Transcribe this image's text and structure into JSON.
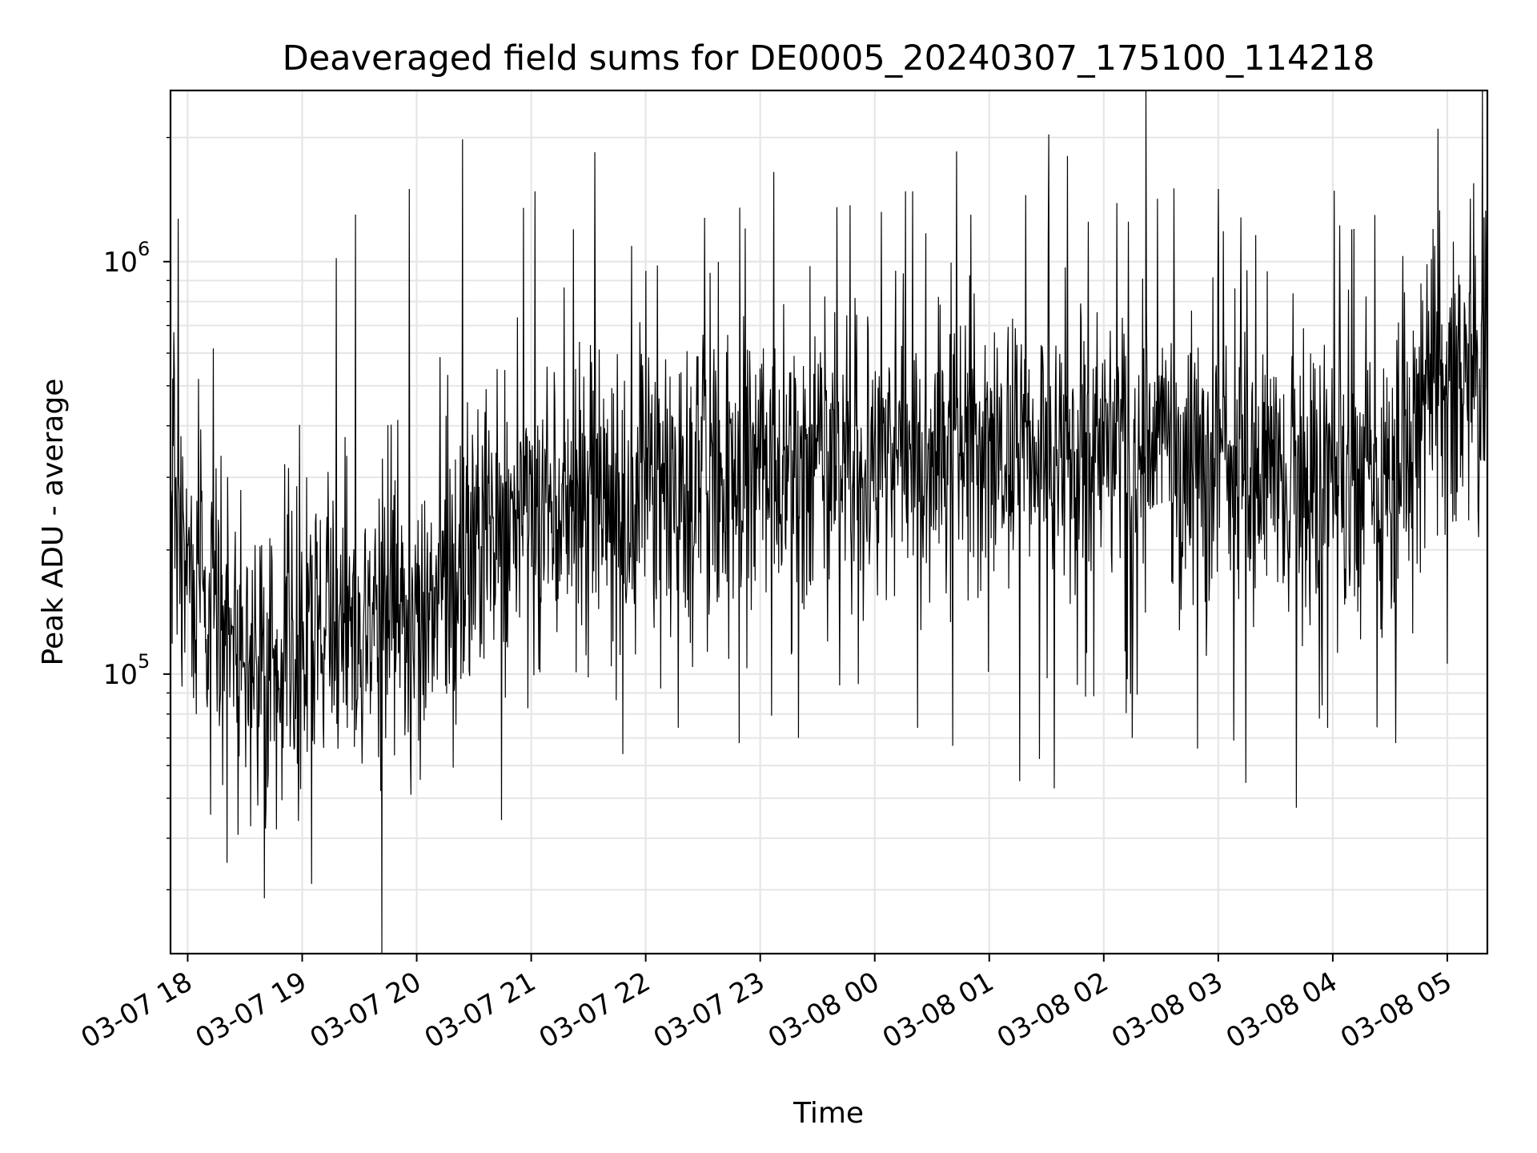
{
  "chart_data": {
    "type": "line",
    "title": "Deaveraged field sums for DE0005_20240307_175100_114218",
    "xlabel": "Time",
    "ylabel": "Peak ADU - average",
    "yscale": "log",
    "grid": true,
    "legend": "none",
    "line_color": "#000000",
    "x_start": "2024-03-07 17:51",
    "x_end": "2024-03-08 05:21",
    "ylim": [
      21000,
      2600000
    ],
    "y_ticks": [
      {
        "value": 100000,
        "base": "10",
        "exp": "5"
      },
      {
        "value": 1000000,
        "base": "10",
        "exp": "6"
      }
    ],
    "x_ticks": [
      {
        "time": "2024-03-07 18:00",
        "label": "03-07 18"
      },
      {
        "time": "2024-03-07 19:00",
        "label": "03-07 19"
      },
      {
        "time": "2024-03-07 20:00",
        "label": "03-07 20"
      },
      {
        "time": "2024-03-07 21:00",
        "label": "03-07 21"
      },
      {
        "time": "2024-03-07 22:00",
        "label": "03-07 22"
      },
      {
        "time": "2024-03-07 23:00",
        "label": "03-07 23"
      },
      {
        "time": "2024-03-08 00:00",
        "label": "03-08 00"
      },
      {
        "time": "2024-03-08 01:00",
        "label": "03-08 01"
      },
      {
        "time": "2024-03-08 02:00",
        "label": "03-08 02"
      },
      {
        "time": "2024-03-08 03:00",
        "label": "03-08 03"
      },
      {
        "time": "2024-03-08 04:00",
        "label": "03-08 04"
      },
      {
        "time": "2024-03-08 05:00",
        "label": "03-08 05"
      }
    ],
    "series": [
      {
        "points": [
          [
            "2024-03-07 17:51",
            230000
          ],
          [
            "2024-03-07 18:00",
            200000
          ],
          [
            "2024-03-07 18:10",
            160000
          ],
          [
            "2024-03-07 18:20",
            140000
          ],
          [
            "2024-03-07 18:30",
            120000
          ],
          [
            "2024-03-07 18:40",
            110000
          ],
          [
            "2024-03-07 18:50",
            105000
          ],
          [
            "2024-03-07 19:00",
            110000
          ],
          [
            "2024-03-07 19:10",
            115000
          ],
          [
            "2024-03-07 19:20",
            120000
          ],
          [
            "2024-03-07 19:30",
            125000
          ],
          [
            "2024-03-07 19:40",
            135000
          ],
          [
            "2024-03-07 19:50",
            145000
          ],
          [
            "2024-03-07 20:00",
            155000
          ],
          [
            "2024-03-07 20:15",
            170000
          ],
          [
            "2024-03-07 20:30",
            200000
          ],
          [
            "2024-03-07 20:45",
            230000
          ],
          [
            "2024-03-07 21:00",
            250000
          ],
          [
            "2024-03-07 21:30",
            270000
          ],
          [
            "2024-03-07 22:00",
            290000
          ],
          [
            "2024-03-07 22:30",
            300000
          ],
          [
            "2024-03-07 23:00",
            310000
          ],
          [
            "2024-03-07 23:30",
            320000
          ],
          [
            "2024-03-08 00:00",
            330000
          ],
          [
            "2024-03-08 00:30",
            350000
          ],
          [
            "2024-03-08 01:00",
            370000
          ],
          [
            "2024-03-08 01:30",
            360000
          ],
          [
            "2024-03-08 02:00",
            350000
          ],
          [
            "2024-03-08 02:30",
            340000
          ],
          [
            "2024-03-08 03:00",
            330000
          ],
          [
            "2024-03-08 03:30",
            300000
          ],
          [
            "2024-03-08 04:00",
            290000
          ],
          [
            "2024-03-08 04:30",
            300000
          ],
          [
            "2024-03-08 04:50",
            480000
          ],
          [
            "2024-03-08 05:21",
            550000
          ]
        ],
        "spikes_up": [
          [
            "2024-03-07 17:55",
            1270000
          ],
          [
            "2024-03-07 19:18",
            1020000
          ],
          [
            "2024-03-07 19:28",
            1300000
          ],
          [
            "2024-03-07 19:56",
            1500000
          ],
          [
            "2024-03-07 20:24",
            1980000
          ],
          [
            "2024-03-07 20:56",
            1350000
          ],
          [
            "2024-03-07 21:02",
            1480000
          ],
          [
            "2024-03-07 22:00",
            950000
          ],
          [
            "2024-03-07 23:07",
            1650000
          ],
          [
            "2024-03-07 23:47",
            1370000
          ],
          [
            "2024-03-08 00:20",
            1480000
          ],
          [
            "2024-03-08 00:43",
            1850000
          ],
          [
            "2024-03-08 01:19",
            1450000
          ],
          [
            "2024-03-08 01:52",
            1250000
          ],
          [
            "2024-03-08 02:13",
            1250000
          ],
          [
            "2024-03-08 02:28",
            1420000
          ],
          [
            "2024-03-08 03:00",
            1500000
          ],
          [
            "2024-03-08 03:12",
            1280000
          ],
          [
            "2024-03-08 04:11",
            1200000
          ],
          [
            "2024-03-08 04:55",
            2100000
          ],
          [
            "2024-03-08 05:20",
            1330000
          ]
        ],
        "spikes_down": [
          [
            "2024-03-07 18:41",
            48000
          ],
          [
            "2024-03-07 19:05",
            31000
          ],
          [
            "2024-03-07 19:57",
            51000
          ],
          [
            "2024-03-07 21:48",
            64000
          ],
          [
            "2024-03-07 22:49",
            68000
          ],
          [
            "2024-03-07 23:20",
            70000
          ],
          [
            "2024-03-08 00:41",
            67000
          ],
          [
            "2024-03-08 01:16",
            55000
          ],
          [
            "2024-03-08 02:15",
            70000
          ],
          [
            "2024-03-08 02:49",
            66000
          ],
          [
            "2024-03-08 03:08",
            69000
          ],
          [
            "2024-03-08 03:53",
            78000
          ],
          [
            "2024-03-08 04:33",
            68000
          ],
          [
            "2024-03-08 05:00",
            106000
          ]
        ],
        "noise_span_decades": 0.55,
        "noise_seed": 114218
      }
    ]
  }
}
